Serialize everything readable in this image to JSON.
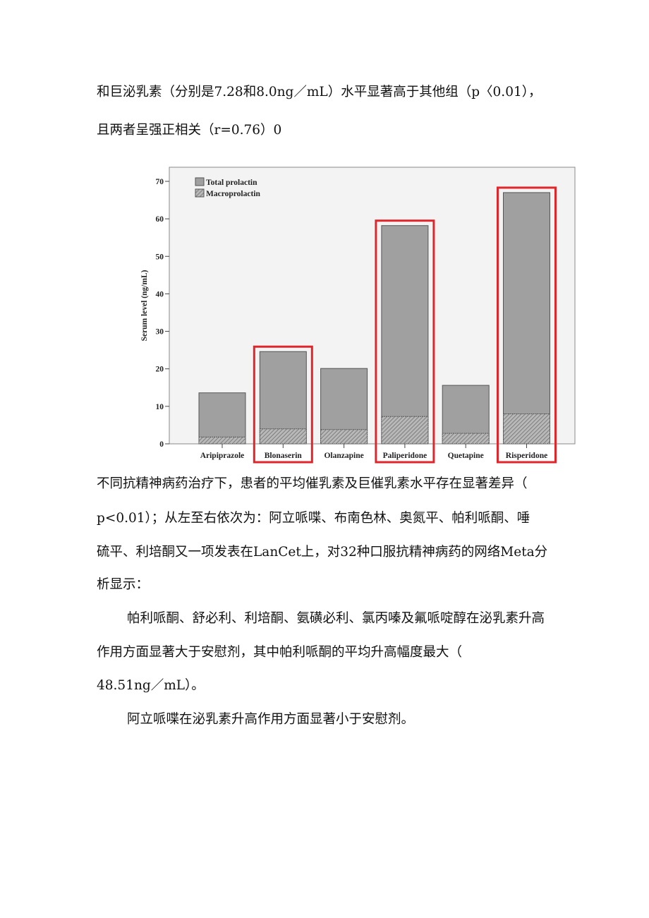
{
  "paragraphs": [
    "和巨泌乳素（分别是7.28和8.0ng／mL）水平显著高于其他组（p〈0.01），",
    "且两者呈强正相关（r=0.76）0",
    "不同抗精神病药治疗下，患者的平均催乳素及巨催乳素水平存在显著差异（",
    "p<0.01）；从左至右依次为：阿立哌喋、布南色林、奥氮平、帕利哌酮、唾",
    "硫平、利培酮又一项发表在LanCet上，对32种口服抗精神病药的网络Meta分",
    "析显示：",
    "帕利哌酮、舒必利、利培酮、氨磺必利、氯丙嗪及氟哌啶醇在泌乳素升高",
    "作用方面显著大于安慰剂，其中帕利哌酮的平均升高幅度最大（",
    "48.51ng／mL）。",
    "阿立哌喋在泌乳素升高作用方面显著小于安慰剂。"
  ],
  "chart_data": {
    "type": "bar",
    "title": "",
    "xlabel": "",
    "ylabel": "Serum level (ng/mL)",
    "ylim": [
      0,
      70
    ],
    "yticks": [
      "0",
      "10",
      "20",
      "30",
      "40",
      "50",
      "60",
      "70"
    ],
    "categories": [
      "Aripiprazole",
      "Blonaserin",
      "Olanzapine",
      "Paliperidone",
      "Quetapine",
      "Risperidone"
    ],
    "series": [
      {
        "name": "Total prolactin",
        "values": [
          13.6,
          24.6,
          20.1,
          58.2,
          15.6,
          67.0
        ],
        "color": "#a0a0a0"
      },
      {
        "name": "Macroprolactin",
        "values": [
          1.8,
          4.0,
          3.8,
          7.3,
          2.8,
          8.0
        ],
        "pattern": "hatched"
      }
    ],
    "highlighted": [
      "Blonaserin",
      "Paliperidone",
      "Risperidone"
    ],
    "highlight_color": "#e0262b",
    "legend_position": "top-left",
    "grid": false,
    "background": "#f3f3f3"
  }
}
